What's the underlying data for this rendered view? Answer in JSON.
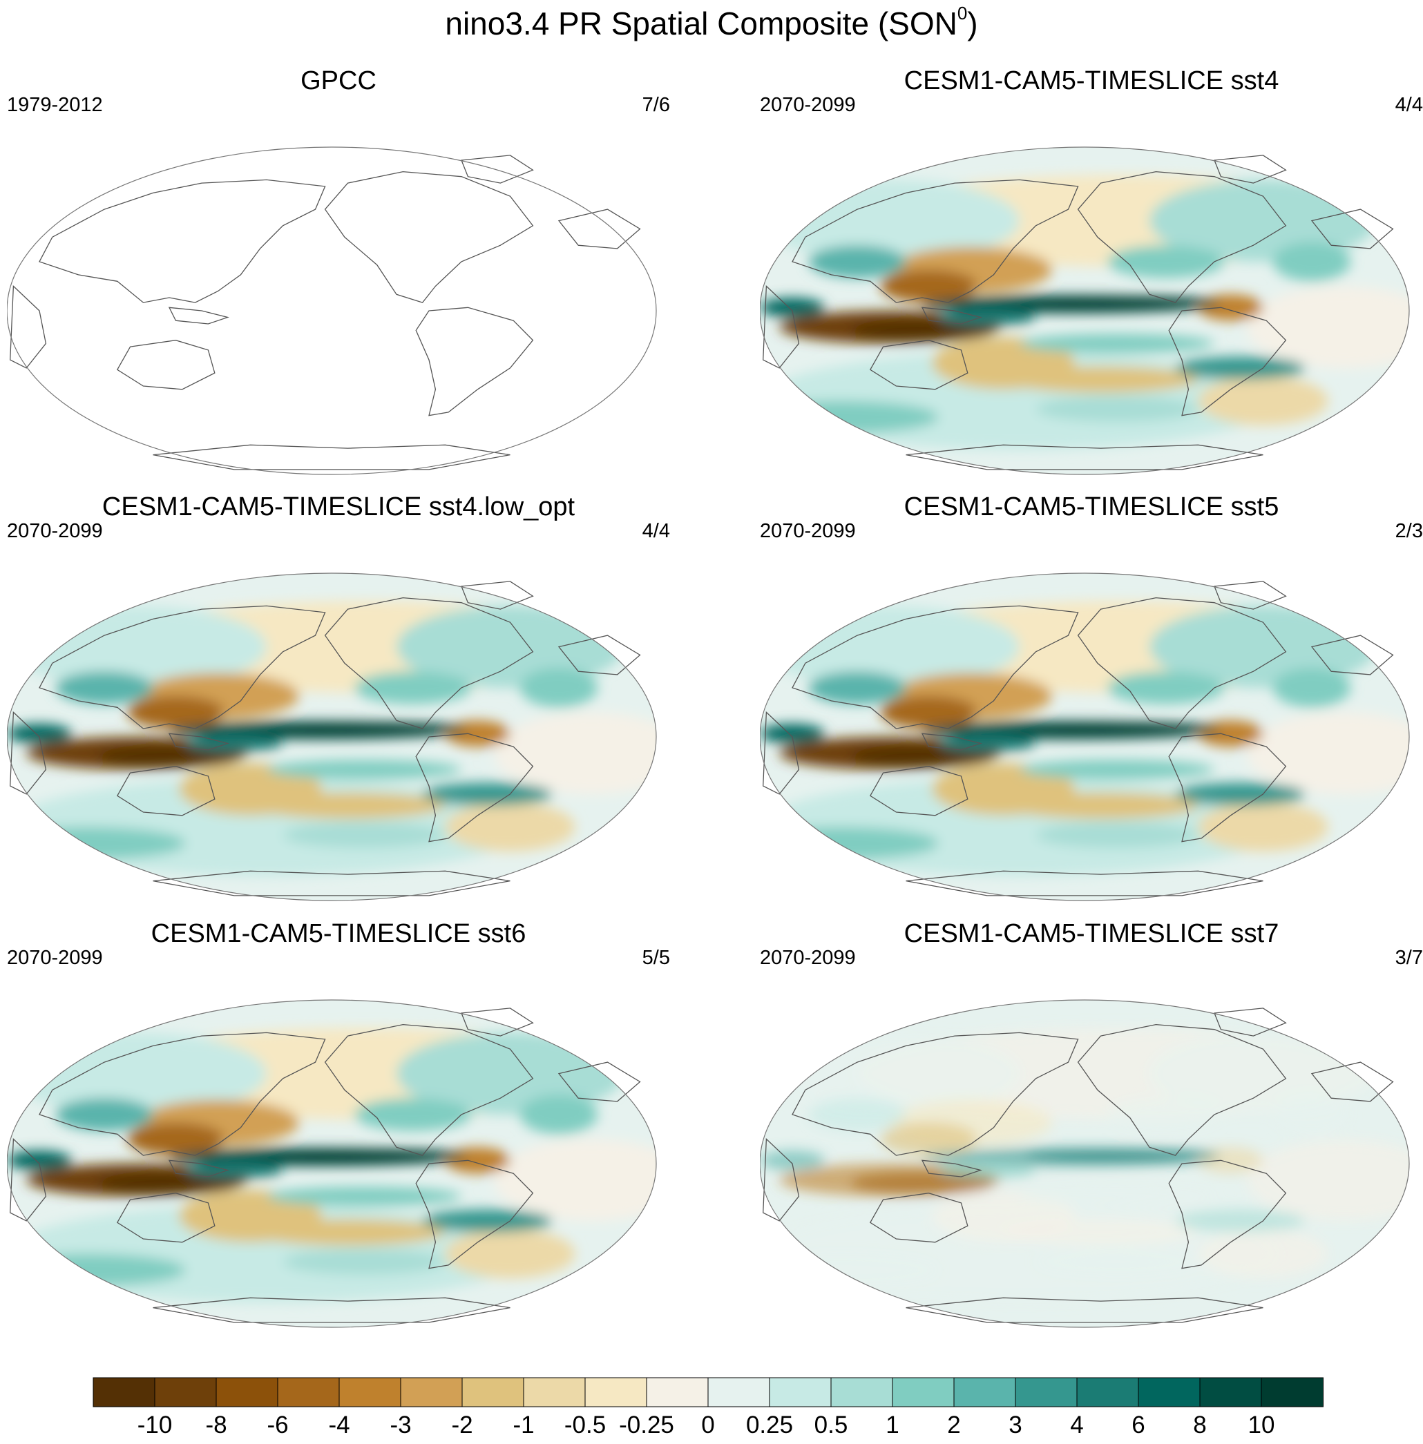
{
  "title": {
    "main": "nino3.4 PR Spatial Composite (SON",
    "sup": "0",
    "close": ")"
  },
  "panels": [
    {
      "id": "gpcc",
      "title": "GPCC",
      "period": "1979-2012",
      "ratio": "7/6",
      "style": "empty"
    },
    {
      "id": "sst4",
      "title": "CESM1-CAM5-TIMESLICE sst4",
      "period": "2070-2099",
      "ratio": "4/4",
      "style": "strong"
    },
    {
      "id": "sst4low",
      "title": "CESM1-CAM5-TIMESLICE sst4.low_opt",
      "period": "2070-2099",
      "ratio": "4/4",
      "style": "strong"
    },
    {
      "id": "sst5",
      "title": "CESM1-CAM5-TIMESLICE sst5",
      "period": "2070-2099",
      "ratio": "2/3",
      "style": "strong"
    },
    {
      "id": "sst6",
      "title": "CESM1-CAM5-TIMESLICE sst6",
      "period": "2070-2099",
      "ratio": "5/5",
      "style": "strong"
    },
    {
      "id": "sst7",
      "title": "CESM1-CAM5-TIMESLICE sst7",
      "period": "2070-2099",
      "ratio": "3/7",
      "style": "weak"
    }
  ],
  "colorbar": {
    "colors": [
      "#543005",
      "#6e400a",
      "#8c510a",
      "#a5671b",
      "#bf812d",
      "#d2a055",
      "#dfc27d",
      "#ecd9a8",
      "#f6e8c3",
      "#f5f1e7",
      "#e6f2ef",
      "#c7eae5",
      "#a8ddd5",
      "#80cdc1",
      "#5ab4ac",
      "#35978f",
      "#1b7c74",
      "#01665e",
      "#014d42",
      "#003c30"
    ],
    "labels": [
      "-10",
      "-8",
      "-6",
      "-4",
      "-3",
      "-2",
      "-1",
      "-0.5",
      "-0.25",
      "0",
      "0.25",
      "0.5",
      "1",
      "2",
      "3",
      "4",
      "6",
      "8",
      "10"
    ]
  }
}
